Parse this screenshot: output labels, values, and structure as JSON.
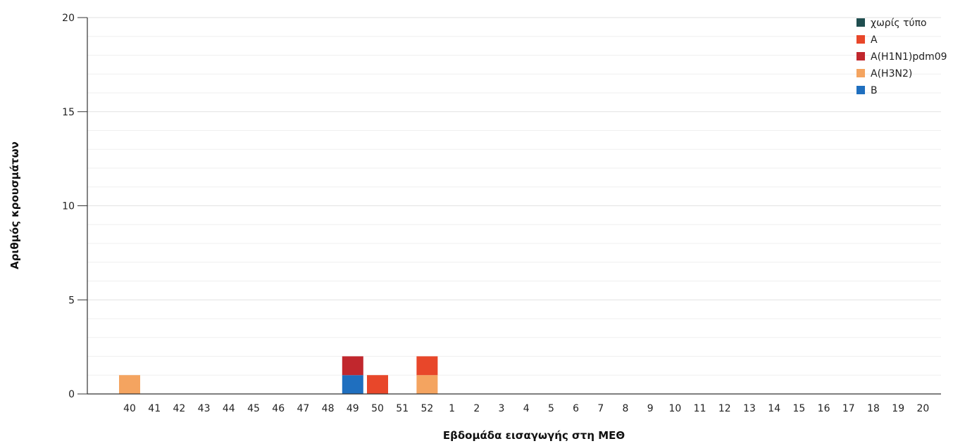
{
  "chart_data": {
    "type": "bar",
    "stacked": true,
    "title": "",
    "xlabel": "Εβδομάδα εισαγωγής στη ΜΕΘ",
    "ylabel": "Αριθμός κρουσμάτων",
    "ylim": [
      0,
      20
    ],
    "yticks": [
      0,
      5,
      10,
      15,
      20
    ],
    "grid": true,
    "legend_position": "top-right",
    "categories": [
      "40",
      "41",
      "42",
      "43",
      "44",
      "45",
      "46",
      "47",
      "48",
      "49",
      "50",
      "51",
      "52",
      "1",
      "2",
      "3",
      "4",
      "5",
      "6",
      "7",
      "8",
      "9",
      "10",
      "11",
      "12",
      "13",
      "14",
      "15",
      "16",
      "17",
      "18",
      "19",
      "20"
    ],
    "series": [
      {
        "name": "χωρίς τύπο",
        "color": "#1f4e4f",
        "values": [
          0,
          0,
          0,
          0,
          0,
          0,
          0,
          0,
          0,
          0,
          0,
          0,
          0,
          0,
          0,
          0,
          0,
          0,
          0,
          0,
          0,
          0,
          0,
          0,
          0,
          0,
          0,
          0,
          0,
          0,
          0,
          0,
          0
        ]
      },
      {
        "name": "A",
        "color": "#e8472a",
        "values": [
          0,
          0,
          0,
          0,
          0,
          0,
          0,
          0,
          0,
          0,
          1,
          0,
          1,
          0,
          0,
          0,
          0,
          0,
          0,
          0,
          0,
          0,
          0,
          0,
          0,
          0,
          0,
          0,
          0,
          0,
          0,
          0,
          0
        ]
      },
      {
        "name": "A(H1N1)pdm09",
        "color": "#c1272d",
        "values": [
          0,
          0,
          0,
          0,
          0,
          0,
          0,
          0,
          0,
          1,
          0,
          0,
          0,
          0,
          0,
          0,
          0,
          0,
          0,
          0,
          0,
          0,
          0,
          0,
          0,
          0,
          0,
          0,
          0,
          0,
          0,
          0,
          0
        ]
      },
      {
        "name": "A(H3N2)",
        "color": "#f4a460",
        "values": [
          1,
          0,
          0,
          0,
          0,
          0,
          0,
          0,
          0,
          0,
          0,
          0,
          1,
          0,
          0,
          0,
          0,
          0,
          0,
          0,
          0,
          0,
          0,
          0,
          0,
          0,
          0,
          0,
          0,
          0,
          0,
          0,
          0
        ]
      },
      {
        "name": "B",
        "color": "#1f6fbf",
        "values": [
          0,
          0,
          0,
          0,
          0,
          0,
          0,
          0,
          0,
          1,
          0,
          0,
          0,
          0,
          0,
          0,
          0,
          0,
          0,
          0,
          0,
          0,
          0,
          0,
          0,
          0,
          0,
          0,
          0,
          0,
          0,
          0,
          0
        ]
      }
    ],
    "stack_order": [
      "B",
      "A(H3N2)",
      "A",
      "A(H1N1)pdm09",
      "χωρίς τύπο"
    ]
  }
}
